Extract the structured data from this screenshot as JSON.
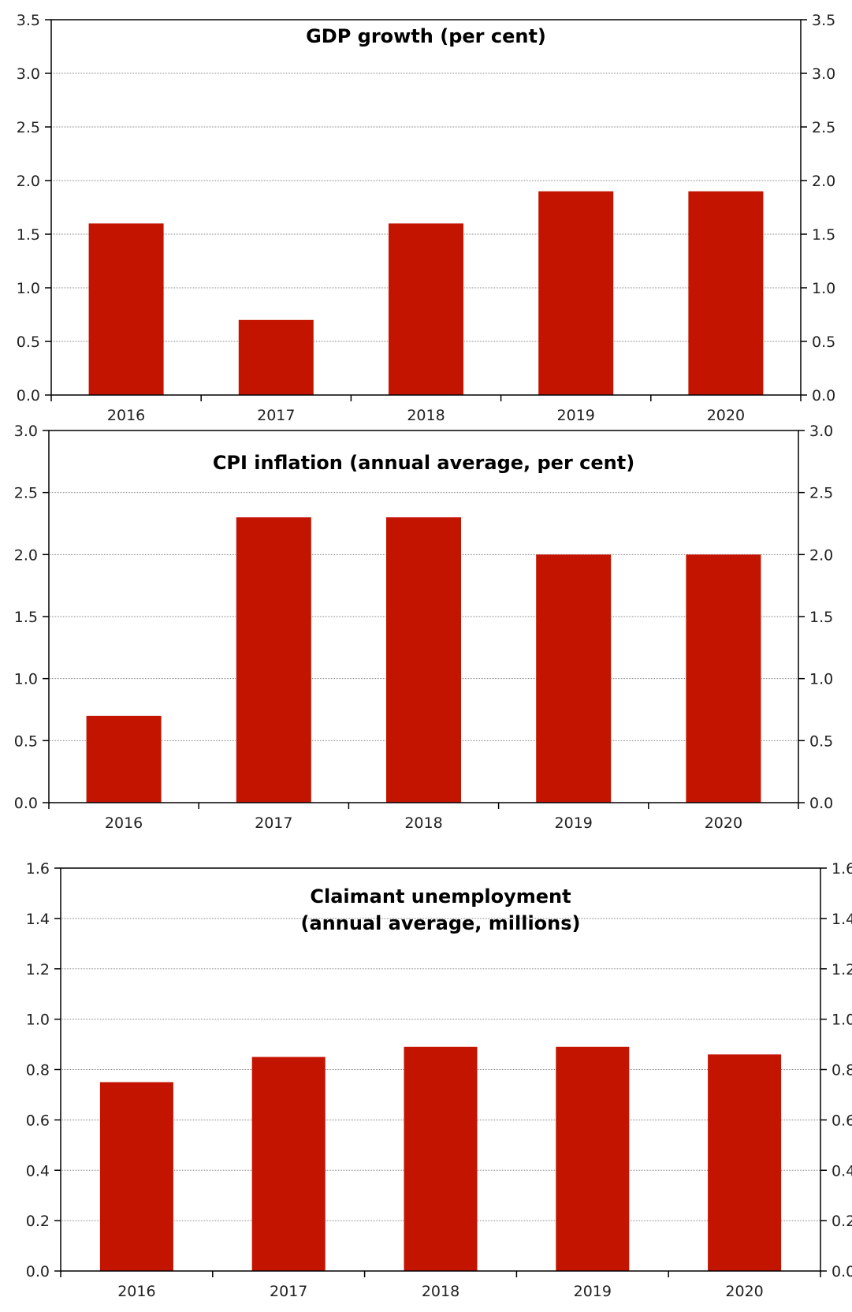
{
  "colors": {
    "bar": "#c31400"
  },
  "chart_data": [
    {
      "type": "bar",
      "title": "GDP growth (per cent)",
      "title_lines": [
        "GDP growth (per cent)"
      ],
      "categories": [
        "2016",
        "2017",
        "2018",
        "2019",
        "2020"
      ],
      "values": [
        1.6,
        0.7,
        1.6,
        1.9,
        1.9
      ],
      "ylim": [
        0,
        3.5
      ],
      "yticks": [
        0.0,
        0.5,
        1.0,
        1.5,
        2.0,
        2.5,
        3.0,
        3.5
      ],
      "ytick_labels": [
        "0.0",
        "0.5",
        "1.0",
        "1.5",
        "2.0",
        "2.5",
        "3.0",
        "3.5"
      ],
      "grid": true,
      "legend": false
    },
    {
      "type": "bar",
      "title": "CPI inflation (annual average, per cent)",
      "title_lines": [
        "CPI inflation (annual average, per cent)"
      ],
      "categories": [
        "2016",
        "2017",
        "2018",
        "2019",
        "2020"
      ],
      "values": [
        0.7,
        2.3,
        2.3,
        2.0,
        2.0
      ],
      "ylim": [
        0,
        3.0
      ],
      "yticks": [
        0.0,
        0.5,
        1.0,
        1.5,
        2.0,
        2.5,
        3.0
      ],
      "ytick_labels": [
        "0.0",
        "0.5",
        "1.0",
        "1.5",
        "2.0",
        "2.5",
        "3.0"
      ],
      "grid": true,
      "legend": false
    },
    {
      "type": "bar",
      "title": "Claimant unemployment (annual average, millions)",
      "title_lines": [
        "Claimant unemployment",
        "(annual average, millions)"
      ],
      "categories": [
        "2016",
        "2017",
        "2018",
        "2019",
        "2020"
      ],
      "values": [
        0.75,
        0.85,
        0.89,
        0.89,
        0.86
      ],
      "ylim": [
        0,
        1.6
      ],
      "yticks": [
        0.0,
        0.2,
        0.4,
        0.6,
        0.8,
        1.0,
        1.2,
        1.4,
        1.6
      ],
      "ytick_labels": [
        "0.0",
        "0.2",
        "0.4",
        "0.6",
        "0.8",
        "1.0",
        "1.2",
        "1.4",
        "1.6"
      ],
      "grid": true,
      "legend": false
    }
  ]
}
